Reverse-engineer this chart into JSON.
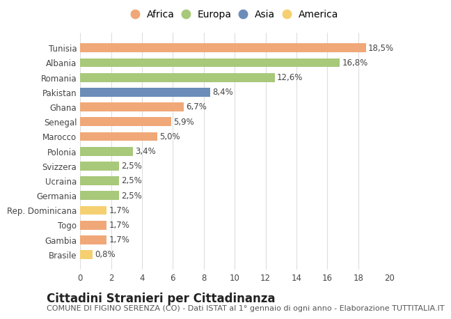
{
  "countries": [
    "Tunisia",
    "Albania",
    "Romania",
    "Pakistan",
    "Ghana",
    "Senegal",
    "Marocco",
    "Polonia",
    "Svizzera",
    "Ucraina",
    "Germania",
    "Rep. Dominicana",
    "Togo",
    "Gambia",
    "Brasile"
  ],
  "values": [
    18.5,
    16.8,
    12.6,
    8.4,
    6.7,
    5.9,
    5.0,
    3.4,
    2.5,
    2.5,
    2.5,
    1.7,
    1.7,
    1.7,
    0.8
  ],
  "labels": [
    "18,5%",
    "16,8%",
    "12,6%",
    "8,4%",
    "6,7%",
    "5,9%",
    "5,0%",
    "3,4%",
    "2,5%",
    "2,5%",
    "2,5%",
    "1,7%",
    "1,7%",
    "1,7%",
    "0,8%"
  ],
  "continents": [
    "Africa",
    "Europa",
    "Europa",
    "Asia",
    "Africa",
    "Africa",
    "Africa",
    "Europa",
    "Europa",
    "Europa",
    "Europa",
    "America",
    "Africa",
    "Africa",
    "America"
  ],
  "colors": {
    "Africa": "#F0A878",
    "Europa": "#A8C87A",
    "Asia": "#6B8DB8",
    "America": "#F5D070"
  },
  "legend_order": [
    "Africa",
    "Europa",
    "Asia",
    "America"
  ],
  "xlim": [
    0,
    20
  ],
  "xticks": [
    0,
    2,
    4,
    6,
    8,
    10,
    12,
    14,
    16,
    18,
    20
  ],
  "title": "Cittadini Stranieri per Cittadinanza",
  "subtitle": "COMUNE DI FIGINO SERENZA (CO) - Dati ISTAT al 1° gennaio di ogni anno - Elaborazione TUTTITALIA.IT",
  "background_color": "#FFFFFF",
  "grid_color": "#DDDDDD",
  "bar_height": 0.6,
  "title_fontsize": 12,
  "subtitle_fontsize": 8,
  "label_fontsize": 8.5,
  "tick_fontsize": 8.5,
  "legend_fontsize": 10
}
